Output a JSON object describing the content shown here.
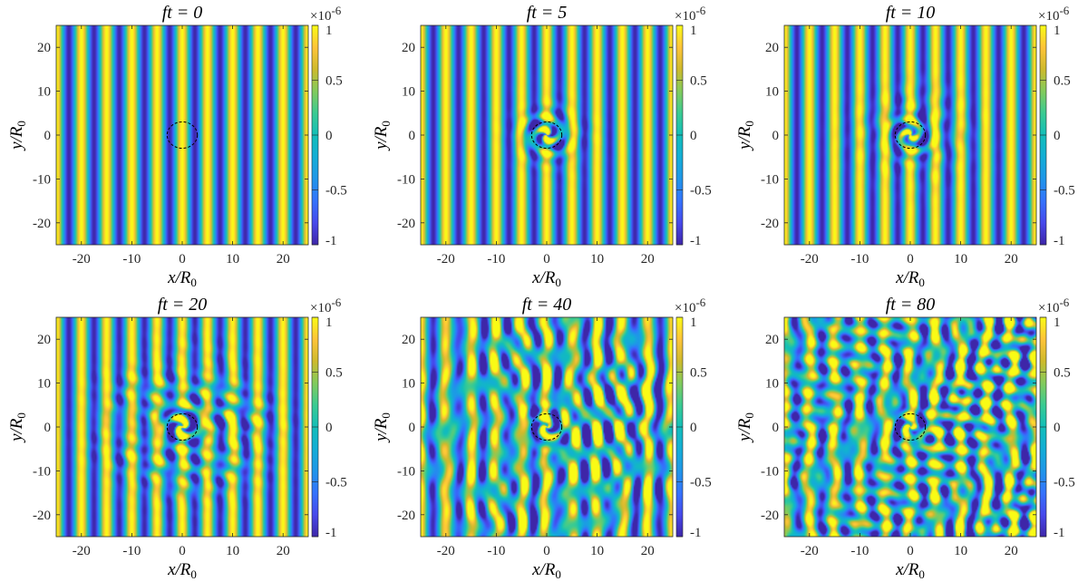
{
  "figure": {
    "colormap": "parula",
    "colors": {
      "min": "#3e26a8",
      "mid": "#13beb8",
      "max": "#f9fb15",
      "circle": "#000000"
    }
  },
  "chart_data": [
    {
      "type": "heatmap",
      "title": "ft = 0",
      "title_text": "ft = 0",
      "time": 0,
      "xlabel": "x/R0",
      "ylabel": "y/R0",
      "xlim": [
        -25,
        25
      ],
      "ylim": [
        -25,
        25
      ],
      "xticks": [
        "-20",
        "-10",
        "0",
        "10",
        "20"
      ],
      "yticks": [
        "20",
        "10",
        "0",
        "-10",
        "-20"
      ],
      "colorbar": {
        "ticks": [
          "1",
          "0.5",
          "0",
          "-0.5",
          "-1"
        ],
        "range": [
          -1,
          1
        ],
        "multiplier": "×10-6"
      },
      "scatterer": {
        "shape": "dashed circle",
        "center": [
          0,
          0
        ],
        "radius": 3
      }
    },
    {
      "type": "heatmap",
      "title": "ft = 5",
      "title_text": "ft = 5",
      "time": 5,
      "xlabel": "x/R0",
      "ylabel": "y/R0",
      "xlim": [
        -25,
        25
      ],
      "ylim": [
        -25,
        25
      ],
      "xticks": [
        "-20",
        "-10",
        "0",
        "10",
        "20"
      ],
      "yticks": [
        "20",
        "10",
        "0",
        "-10",
        "-20"
      ],
      "colorbar": {
        "ticks": [
          "1",
          "0.5",
          "0",
          "-0.5",
          "-1"
        ],
        "range": [
          -1,
          1
        ],
        "multiplier": "×10-6"
      },
      "scatterer": {
        "shape": "dashed circle",
        "center": [
          0,
          0
        ],
        "radius": 3
      }
    },
    {
      "type": "heatmap",
      "title": "ft = 10",
      "title_text": "ft = 10",
      "time": 10,
      "xlabel": "x/R0",
      "ylabel": "y/R0",
      "xlim": [
        -25,
        25
      ],
      "ylim": [
        -25,
        25
      ],
      "xticks": [
        "-20",
        "-10",
        "0",
        "10",
        "20"
      ],
      "yticks": [
        "20",
        "10",
        "0",
        "-10",
        "-20"
      ],
      "colorbar": {
        "ticks": [
          "1",
          "0.5",
          "0",
          "-0.5",
          "-1"
        ],
        "range": [
          -1,
          1
        ],
        "multiplier": "×10-6"
      },
      "scatterer": {
        "shape": "dashed circle",
        "center": [
          0,
          0
        ],
        "radius": 3
      }
    },
    {
      "type": "heatmap",
      "title": "ft = 20",
      "title_text": "ft = 20",
      "time": 20,
      "xlabel": "x/R0",
      "ylabel": "y/R0",
      "xlim": [
        -25,
        25
      ],
      "ylim": [
        -25,
        25
      ],
      "xticks": [
        "-20",
        "-10",
        "0",
        "10",
        "20"
      ],
      "yticks": [
        "20",
        "10",
        "0",
        "-10",
        "-20"
      ],
      "colorbar": {
        "ticks": [
          "1",
          "0.5",
          "0",
          "-0.5",
          "-1"
        ],
        "range": [
          -1,
          1
        ],
        "multiplier": "×10-6"
      },
      "scatterer": {
        "shape": "dashed circle",
        "center": [
          0,
          0
        ],
        "radius": 3
      }
    },
    {
      "type": "heatmap",
      "title": "ft = 40",
      "title_text": "ft = 40",
      "time": 40,
      "xlabel": "x/R0",
      "ylabel": "y/R0",
      "xlim": [
        -25,
        25
      ],
      "ylim": [
        -25,
        25
      ],
      "xticks": [
        "-20",
        "-10",
        "0",
        "10",
        "20"
      ],
      "yticks": [
        "20",
        "10",
        "0",
        "-10",
        "-20"
      ],
      "colorbar": {
        "ticks": [
          "1",
          "0.5",
          "0",
          "-0.5",
          "-1"
        ],
        "range": [
          -1,
          1
        ],
        "multiplier": "×10-6"
      },
      "scatterer": {
        "shape": "dashed circle",
        "center": [
          0,
          0
        ],
        "radius": 3
      }
    },
    {
      "type": "heatmap",
      "title": "ft = 80",
      "title_text": "ft = 80",
      "time": 80,
      "xlabel": "x/R0",
      "ylabel": "y/R0",
      "xlim": [
        -25,
        25
      ],
      "ylim": [
        -25,
        25
      ],
      "xticks": [
        "-20",
        "-10",
        "0",
        "10",
        "20"
      ],
      "yticks": [
        "20",
        "10",
        "0",
        "-10",
        "-20"
      ],
      "colorbar": {
        "ticks": [
          "1",
          "0.5",
          "0",
          "-0.5",
          "-1"
        ],
        "range": [
          -1,
          1
        ],
        "multiplier": "×10-6"
      },
      "scatterer": {
        "shape": "dashed circle",
        "center": [
          0,
          0
        ],
        "radius": 3
      }
    }
  ]
}
